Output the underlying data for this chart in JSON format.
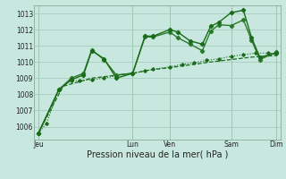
{
  "xlabel": "Pression niveau de la mer( hPa )",
  "bg_color": "#c8e8df",
  "grid_color": "#a8ccbe",
  "ylim": [
    1005.2,
    1013.5
  ],
  "xlim": [
    0,
    30
  ],
  "yticks": [
    1006,
    1007,
    1008,
    1009,
    1010,
    1011,
    1012,
    1013
  ],
  "xtick_positions": [
    0.5,
    12,
    16.5,
    24,
    29.5
  ],
  "xtick_labels": [
    "Jeu",
    "Lun",
    "Ven",
    "Sam",
    "Dim"
  ],
  "vlines": [
    0.5,
    12,
    16.5,
    24,
    29.5
  ],
  "series_dotted": {
    "x": [
      0.5,
      1.5,
      3.0,
      4.5,
      5.5,
      7.0,
      8.5,
      10.0,
      12.0,
      13.5,
      14.5,
      16.5,
      18.0,
      19.5,
      21.0,
      22.5,
      24.0,
      25.5,
      27.0,
      28.5,
      29.5
    ],
    "y": [
      1005.6,
      1006.2,
      1008.3,
      1008.85,
      1008.85,
      1008.9,
      1009.0,
      1009.15,
      1009.3,
      1009.45,
      1009.55,
      1009.7,
      1009.85,
      1009.95,
      1010.1,
      1010.2,
      1010.35,
      1010.45,
      1010.55,
      1010.55,
      1010.5
    ],
    "color": "#1a6b1a",
    "linewidth": 0.8,
    "markersize": 1.8
  },
  "series_smooth_low": {
    "x": [
      0.5,
      3.5,
      7.0,
      12.0,
      14.0,
      16.5,
      19.0,
      21.5,
      24.0,
      26.5,
      29.5
    ],
    "y": [
      1005.6,
      1008.5,
      1009.0,
      1009.3,
      1009.5,
      1009.65,
      1009.82,
      1010.0,
      1010.15,
      1010.3,
      1010.4
    ],
    "color": "#1a6b1a",
    "linewidth": 0.9
  },
  "series_line2": {
    "x": [
      0.5,
      3.0,
      4.5,
      6.0,
      7.0,
      8.5,
      10.0,
      12.0,
      13.5,
      14.5,
      16.5,
      17.5,
      19.0,
      20.5,
      21.5,
      22.5,
      24.0,
      25.5,
      26.5,
      27.5,
      29.5
    ],
    "y": [
      1005.6,
      1008.3,
      1008.9,
      1009.2,
      1010.7,
      1010.2,
      1009.0,
      1009.3,
      1011.6,
      1011.6,
      1012.0,
      1011.85,
      1011.3,
      1011.1,
      1012.2,
      1012.45,
      1013.05,
      1013.2,
      1011.5,
      1010.3,
      1010.55
    ],
    "color": "#1a6b1a",
    "linewidth": 1.0,
    "markersize": 2.2
  },
  "series_line3": {
    "x": [
      0.5,
      3.0,
      4.5,
      6.0,
      7.0,
      8.5,
      10.0,
      12.0,
      13.5,
      14.5,
      16.5,
      17.5,
      19.0,
      20.5,
      21.5,
      22.5,
      24.0,
      25.5,
      26.5,
      27.5,
      29.5
    ],
    "y": [
      1005.6,
      1008.3,
      1009.0,
      1009.3,
      1010.75,
      1010.15,
      1009.2,
      1009.3,
      1011.55,
      1011.55,
      1011.85,
      1011.5,
      1011.1,
      1010.7,
      1011.9,
      1012.3,
      1012.25,
      1012.6,
      1011.35,
      1010.15,
      1010.6
    ],
    "color": "#2a7a2a",
    "linewidth": 1.0,
    "markersize": 2.2
  }
}
